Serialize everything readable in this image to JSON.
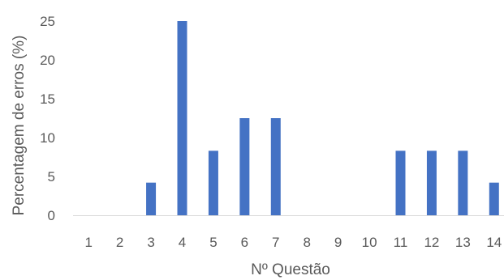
{
  "chart_data": {
    "type": "bar",
    "categories": [
      "1",
      "2",
      "3",
      "4",
      "5",
      "6",
      "7",
      "8",
      "9",
      "10",
      "11",
      "12",
      "13",
      "14"
    ],
    "values": [
      0,
      0,
      4.2,
      25,
      8.3,
      12.5,
      12.5,
      0,
      0,
      0,
      8.3,
      8.3,
      8.3,
      4.2
    ],
    "xlabel": "Nº Questão",
    "ylabel": "Percentagem de erros (%)",
    "ylim": [
      0,
      25
    ],
    "yticks": [
      "0",
      "5",
      "10",
      "15",
      "20",
      "25"
    ],
    "grid": false,
    "legend": "none",
    "bar_color": "#4472C4",
    "axis_color": "#D9D9D9"
  }
}
